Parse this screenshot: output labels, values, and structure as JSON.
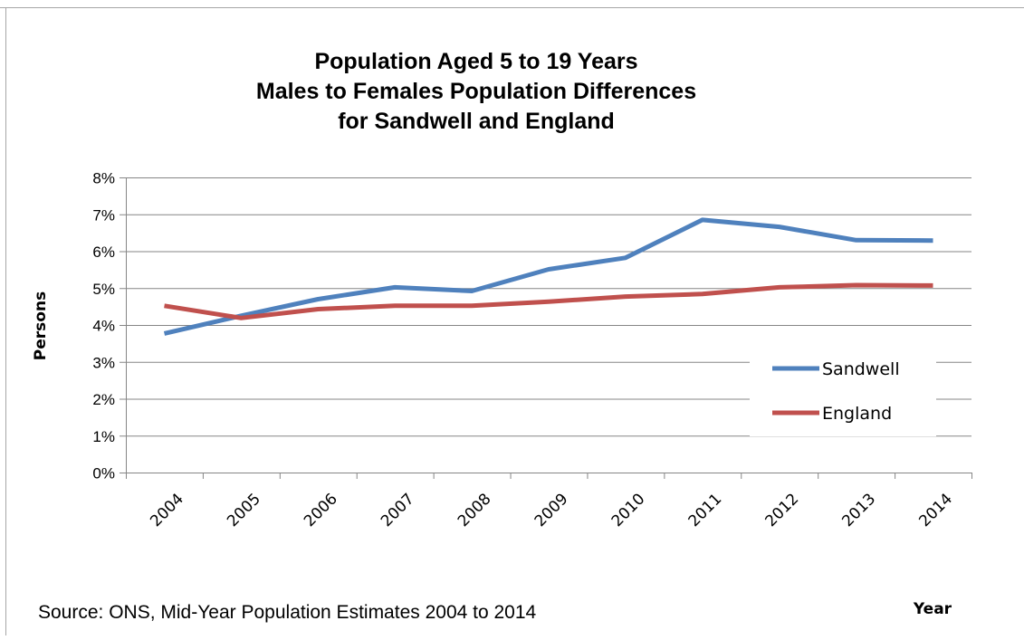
{
  "chart_data": {
    "type": "line",
    "title_lines": [
      "Population Aged 5 to 19 Years",
      "Males to Females Population Differences",
      "for Sandwell and England"
    ],
    "xlabel": "Year",
    "ylabel": "Persons",
    "categories": [
      "2004",
      "2005",
      "2006",
      "2007",
      "2008",
      "2009",
      "2010",
      "2011",
      "2012",
      "2013",
      "2014"
    ],
    "y_ticks": [
      "0%",
      "1%",
      "2%",
      "3%",
      "4%",
      "5%",
      "6%",
      "7%",
      "8%"
    ],
    "ylim": [
      0,
      8
    ],
    "y_unit": "%",
    "grid": "horizontal",
    "legend_position": "bottom-right",
    "series": [
      {
        "name": "Sandwell",
        "color": "#4f81bd",
        "values": [
          3.77,
          4.25,
          4.7,
          5.02,
          4.92,
          5.51,
          5.82,
          6.85,
          6.66,
          6.3,
          6.29
        ]
      },
      {
        "name": "England",
        "color": "#c0504d",
        "values": [
          4.52,
          4.19,
          4.43,
          4.52,
          4.52,
          4.63,
          4.77,
          4.84,
          5.02,
          5.08,
          5.07
        ]
      }
    ],
    "source": "Source: ONS,  Mid-Year Population Estimates 2004 to 2014"
  }
}
